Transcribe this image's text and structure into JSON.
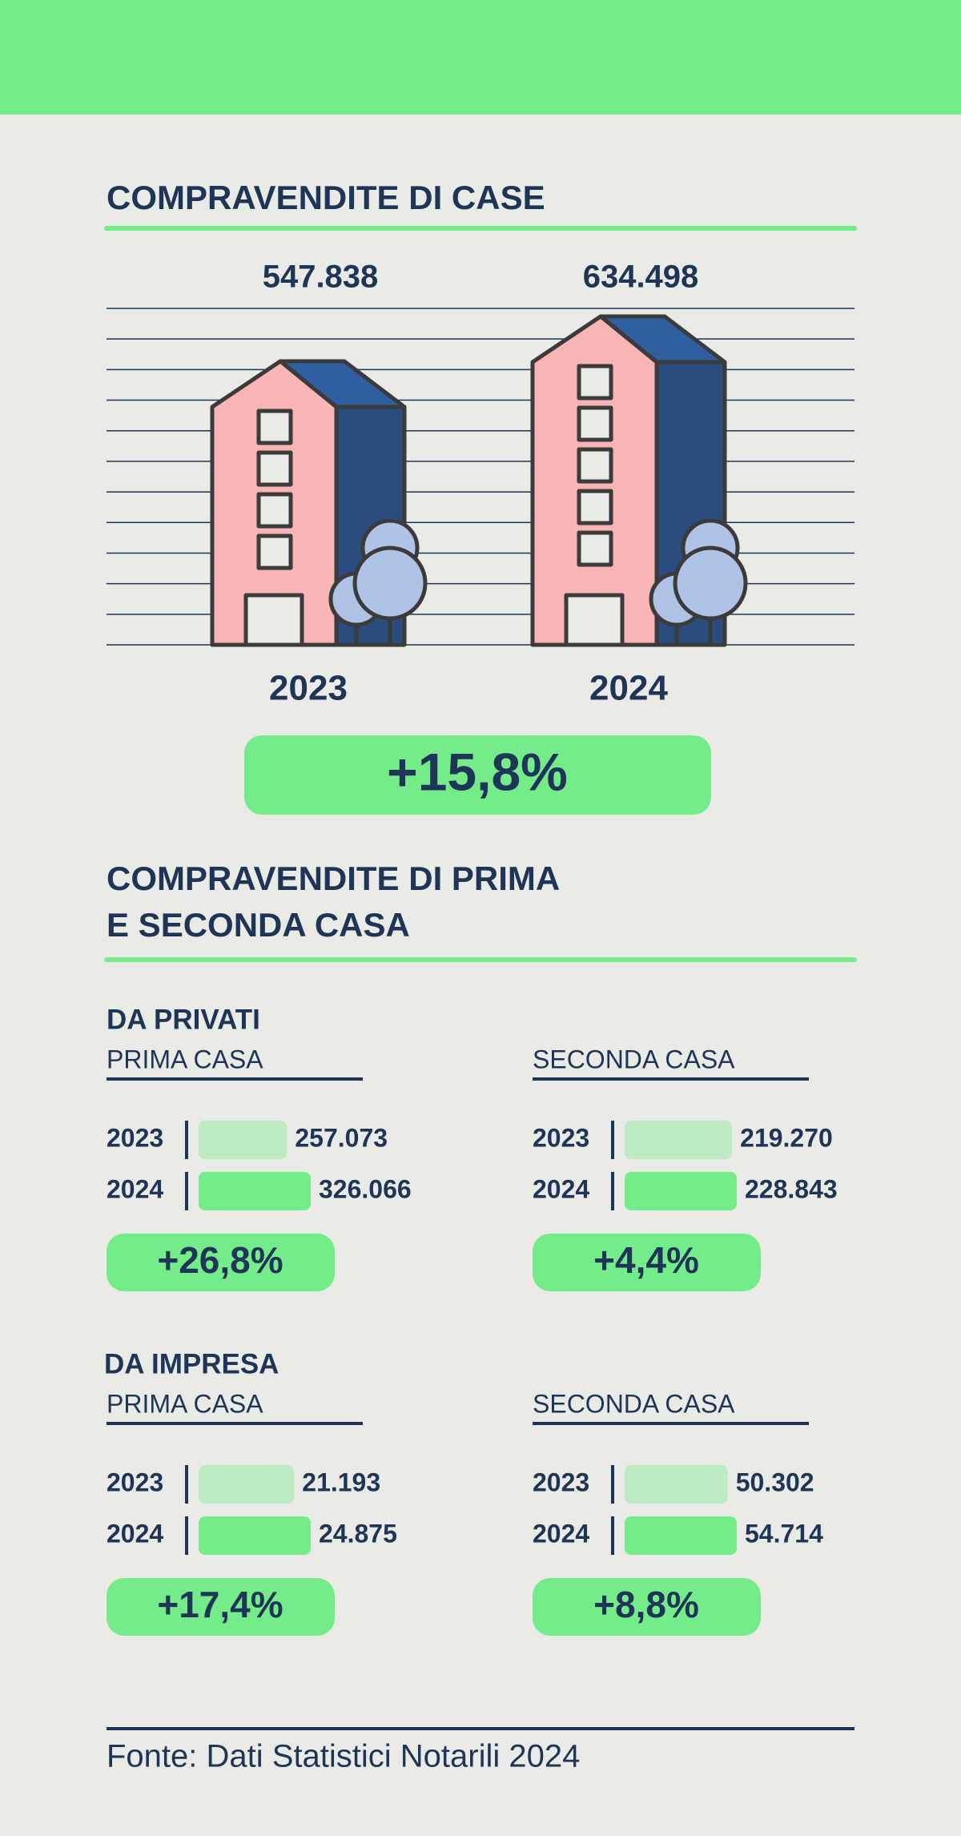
{
  "chart_data": [
    {
      "type": "pictograph",
      "title": "COMPRAVENDITE DI CASE",
      "categories": [
        "2023",
        "2024"
      ],
      "values": [
        547838,
        634498
      ],
      "value_labels": [
        "547.838",
        "634.498"
      ],
      "color": "#f9b5b5",
      "side_color": "#2a4d7e",
      "roof_color": "#2f5fa0",
      "tree_color": "#aec3e6",
      "annotation": "+15,8%"
    },
    {
      "type": "bar",
      "orientation": "horizontal",
      "title": "PRIMA CASA",
      "categories": [
        "2023",
        "2024"
      ],
      "values": [
        257073,
        326066
      ],
      "value_labels": [
        "257.073",
        "326.066"
      ],
      "colors": [
        "#bdebc4",
        "#74ec8a"
      ],
      "annotation": "+26,8%"
    },
    {
      "type": "bar",
      "orientation": "horizontal",
      "title": "SECONDA CASA",
      "categories": [
        "2023",
        "2024"
      ],
      "values": [
        219270,
        228843
      ],
      "value_labels": [
        "219.270",
        "228.843"
      ],
      "colors": [
        "#bdebc4",
        "#74ec8a"
      ],
      "annotation": "+4,4%"
    },
    {
      "type": "bar",
      "orientation": "horizontal",
      "title": "PRIMA CASA",
      "categories": [
        "2023",
        "2024"
      ],
      "values": [
        21193,
        24875
      ],
      "value_labels": [
        "21.193",
        "24.875"
      ],
      "colors": [
        "#bdebc4",
        "#74ec8a"
      ],
      "annotation": "+17,4%"
    },
    {
      "type": "bar",
      "orientation": "horizontal",
      "title": "SECONDA CASA",
      "categories": [
        "2023",
        "2024"
      ],
      "values": [
        50302,
        54714
      ],
      "value_labels": [
        "50.302",
        "54.714"
      ],
      "colors": [
        "#bdebc4",
        "#74ec8a"
      ],
      "annotation": "+8,8%"
    }
  ],
  "section_title": [
    "COMPRAVENDITE DI PRIMA",
    "E SECONDA CASA"
  ],
  "groups": [
    "DA PRIVATI",
    "DA IMPRESA"
  ],
  "source": "Fonte: Dati Statistici Notarili 2024"
}
